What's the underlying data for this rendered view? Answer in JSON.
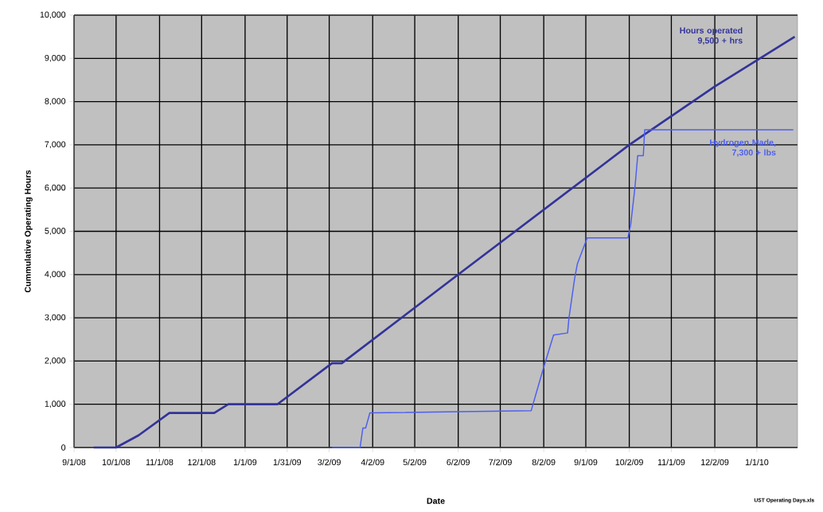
{
  "chart_data": {
    "type": "line",
    "xlabel": "Date",
    "ylabel": "Cummulative Operating Hours",
    "xlim": [
      "2008-09-01",
      "2010-01-30"
    ],
    "xticks": [
      {
        "value": "2008-09-01",
        "label": "9/1/08"
      },
      {
        "value": "2008-10-01",
        "label": "10/1/08"
      },
      {
        "value": "2008-11-01",
        "label": "11/1/08"
      },
      {
        "value": "2008-12-01",
        "label": "12/1/08"
      },
      {
        "value": "2009-01-01",
        "label": "1/1/09"
      },
      {
        "value": "2009-01-31",
        "label": "1/31/09"
      },
      {
        "value": "2009-03-02",
        "label": "3/2/09"
      },
      {
        "value": "2009-04-02",
        "label": "4/2/09"
      },
      {
        "value": "2009-05-02",
        "label": "5/2/09"
      },
      {
        "value": "2009-06-02",
        "label": "6/2/09"
      },
      {
        "value": "2009-07-02",
        "label": "7/2/09"
      },
      {
        "value": "2009-08-02",
        "label": "8/2/09"
      },
      {
        "value": "2009-09-01",
        "label": "9/1/09"
      },
      {
        "value": "2009-10-02",
        "label": "10/2/09"
      },
      {
        "value": "2009-11-01",
        "label": "11/1/09"
      },
      {
        "value": "2009-12-02",
        "label": "12/2/09"
      },
      {
        "value": "2010-01-01",
        "label": "1/1/10"
      }
    ],
    "ylim": [
      0,
      10000
    ],
    "yticks": [
      0,
      {
        "value": 1000,
        "label": "1,000"
      },
      {
        "value": 2000,
        "label": "2,000"
      },
      {
        "value": 3000,
        "label": "3,000"
      },
      {
        "value": 4000,
        "label": "4,000"
      },
      {
        "value": 5000,
        "label": "5,000"
      },
      {
        "value": 6000,
        "label": "6,000"
      },
      {
        "value": 7000,
        "label": "7,000"
      },
      {
        "value": 8000,
        "label": "8,000"
      },
      {
        "value": 9000,
        "label": "9,000"
      },
      {
        "value": 10000,
        "label": "10,000"
      }
    ],
    "grid": true,
    "marker": "none",
    "series": [
      {
        "color": "#333399",
        "x": [
          "2008-09-15",
          "2008-10-01",
          "2008-10-17",
          "2008-11-08",
          "2008-12-10",
          "2008-12-20",
          "2009-01-24",
          "2009-03-04",
          "2009-03-11",
          "2009-06-02",
          "2009-10-02",
          "2009-12-02",
          "2010-01-28"
        ],
        "values": [
          0,
          0,
          280,
          800,
          800,
          1000,
          1000,
          1950,
          1950,
          4000,
          7000,
          8350,
          9500
        ]
      },
      {
        "color": "#4d5ff0",
        "x": [
          "2009-03-04",
          "2009-03-24",
          "2009-03-26",
          "2009-03-28",
          "2009-03-31",
          "2009-07-24",
          "2009-08-01",
          "2009-08-09",
          "2009-08-19",
          "2009-08-20",
          "2009-08-24",
          "2009-08-26",
          "2009-09-02",
          "2009-10-01",
          "2009-10-03",
          "2009-10-06",
          "2009-10-08",
          "2009-10-12",
          "2009-10-13",
          "2010-01-27"
        ],
        "values": [
          0,
          0,
          450,
          450,
          800,
          850,
          1750,
          2600,
          2650,
          3000,
          3900,
          4250,
          4850,
          4850,
          5150,
          6000,
          6750,
          6750,
          7350,
          7350
        ]
      }
    ],
    "annotations": [
      "**Hours operated** **9,500 + hrs**",
      "**Hydrogen Made,** **7,300 + lbs**",
      "UST Operating Days.xls"
    ]
  }
}
